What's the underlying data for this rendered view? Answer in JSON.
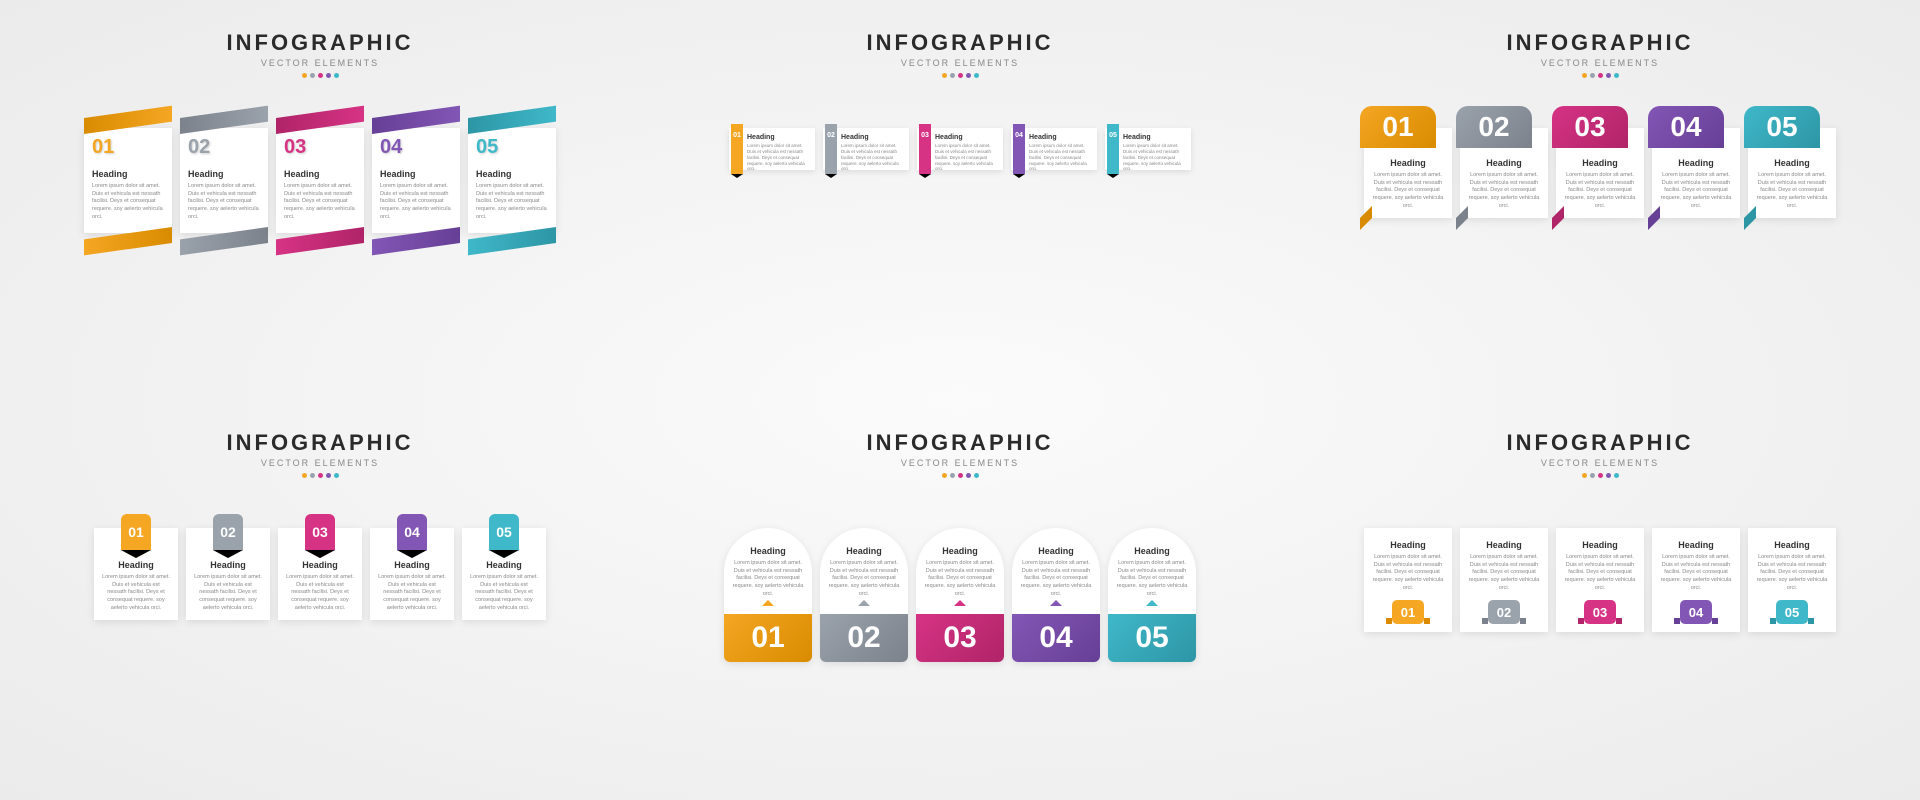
{
  "header": {
    "title": "INFOGRAPHIC",
    "subtitle": "VECTOR ELEMENTS",
    "title_fontsize": 22,
    "subtitle_fontsize": 9,
    "title_color": "#2b2b2b",
    "subtitle_color": "#888888"
  },
  "palette": [
    {
      "num": "01",
      "main": "#f5a623",
      "dark": "#d98b00"
    },
    {
      "num": "02",
      "main": "#9aa2ac",
      "dark": "#7b828b"
    },
    {
      "num": "03",
      "main": "#d63384",
      "dark": "#b02468"
    },
    {
      "num": "04",
      "main": "#8256b5",
      "dark": "#663f96"
    },
    {
      "num": "05",
      "main": "#3fb8c9",
      "dark": "#2d96a5"
    }
  ],
  "card": {
    "heading": "Heading",
    "body": "Lorem ipsum dolor sit amet. Duis et vehicula est nessath facilisi. Deys et consequat requere. soy aelerto vehicula orci."
  },
  "background": "#f0f0f0",
  "card_bg": "#ffffff",
  "variants": [
    "skew",
    "ribbon",
    "large-tab",
    "badge-arrow",
    "arch",
    "bottom-tab"
  ]
}
